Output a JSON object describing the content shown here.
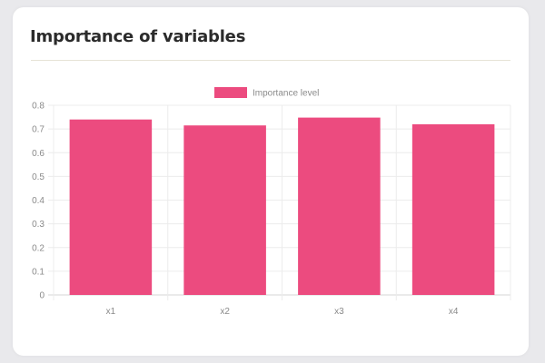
{
  "card": {
    "title": "Importance of variables"
  },
  "chart_data": {
    "type": "bar",
    "categories": [
      "x1",
      "x2",
      "x3",
      "x4"
    ],
    "series": [
      {
        "name": "Importance level",
        "values": [
          0.74,
          0.715,
          0.748,
          0.72
        ],
        "color": "#ec4b7f"
      }
    ],
    "ylim": [
      0,
      0.8
    ],
    "yticks": [
      "0",
      "0.1",
      "0.2",
      "0.3",
      "0.4",
      "0.5",
      "0.6",
      "0.7",
      "0.8"
    ],
    "grid": true,
    "legend_position": "top-center",
    "title": "",
    "xlabel": "",
    "ylabel": ""
  }
}
